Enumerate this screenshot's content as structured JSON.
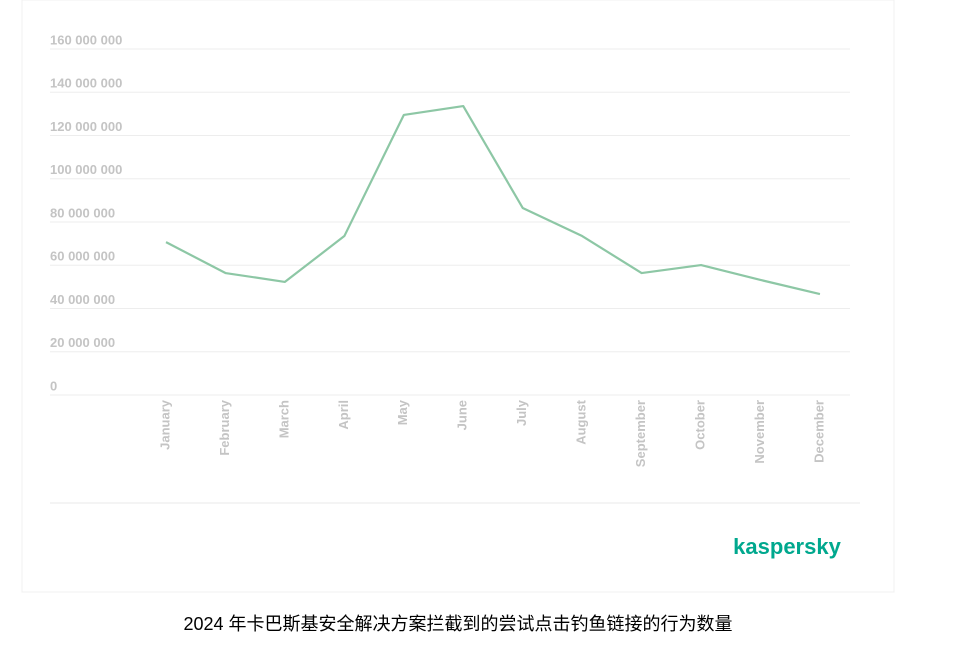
{
  "chart_data": {
    "type": "line",
    "categories": [
      "January",
      "February",
      "March",
      "April",
      "May",
      "June",
      "July",
      "August",
      "September",
      "October",
      "November",
      "December"
    ],
    "series": [
      {
        "name": null,
        "color": "#8dc7a5",
        "values": [
          70700000,
          56400000,
          52300000,
          73500000,
          129500000,
          133600000,
          86500000,
          73500000,
          56400000,
          60100000,
          53200000,
          46700000
        ]
      }
    ],
    "ylim": [
      0,
      160000000
    ],
    "yticks": [
      0,
      {
        "value": 20000000,
        "label": "20 000 000"
      },
      {
        "value": 40000000,
        "label": "40 000 000"
      },
      {
        "value": 60000000,
        "label": "60 000 000"
      },
      {
        "value": 80000000,
        "label": "80 000 000"
      },
      {
        "value": 100000000,
        "label": "100 000 000"
      },
      {
        "value": 120000000,
        "label": "120 000 000"
      },
      {
        "value": 140000000,
        "label": "140 000 000"
      },
      {
        "value": 160000000,
        "label": "160 000 000"
      }
    ],
    "grid": true
  },
  "logo": "kaspersky",
  "caption": "2024 年卡巴斯基安全解决方案拦截到的尝试点击钓鱼链接的行为数量"
}
